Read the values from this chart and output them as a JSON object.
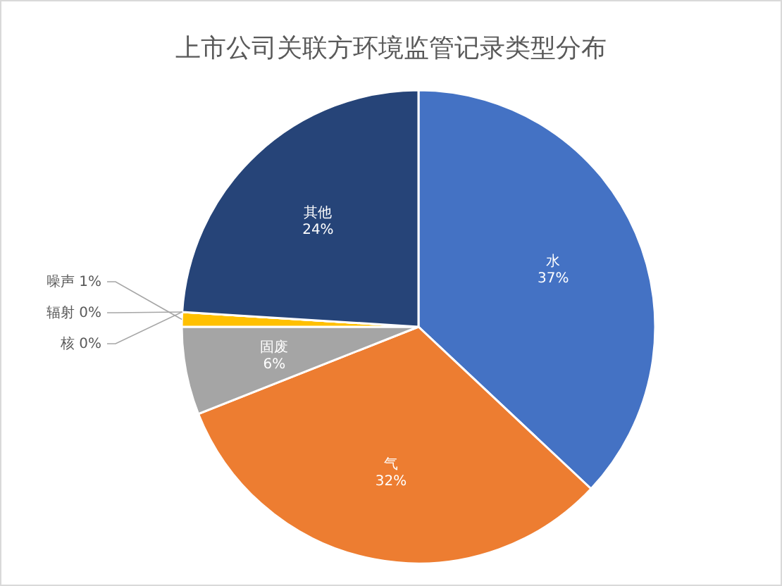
{
  "chart_data": {
    "type": "pie",
    "title": "上市公司关联方环境监管记录类型分布",
    "categories": [
      "水",
      "气",
      "固废",
      "噪声",
      "辐射",
      "核",
      "其他"
    ],
    "values": [
      37,
      32,
      6,
      1,
      0,
      0,
      24
    ],
    "colors": [
      "#4472c4",
      "#ed7d31",
      "#a5a5a5",
      "#ffc000",
      "#5b9bd5",
      "#70ad47",
      "#264478"
    ],
    "value_labels": [
      "37%",
      "32%",
      "6%",
      "1%",
      "0%",
      "0%",
      "24%"
    ]
  }
}
